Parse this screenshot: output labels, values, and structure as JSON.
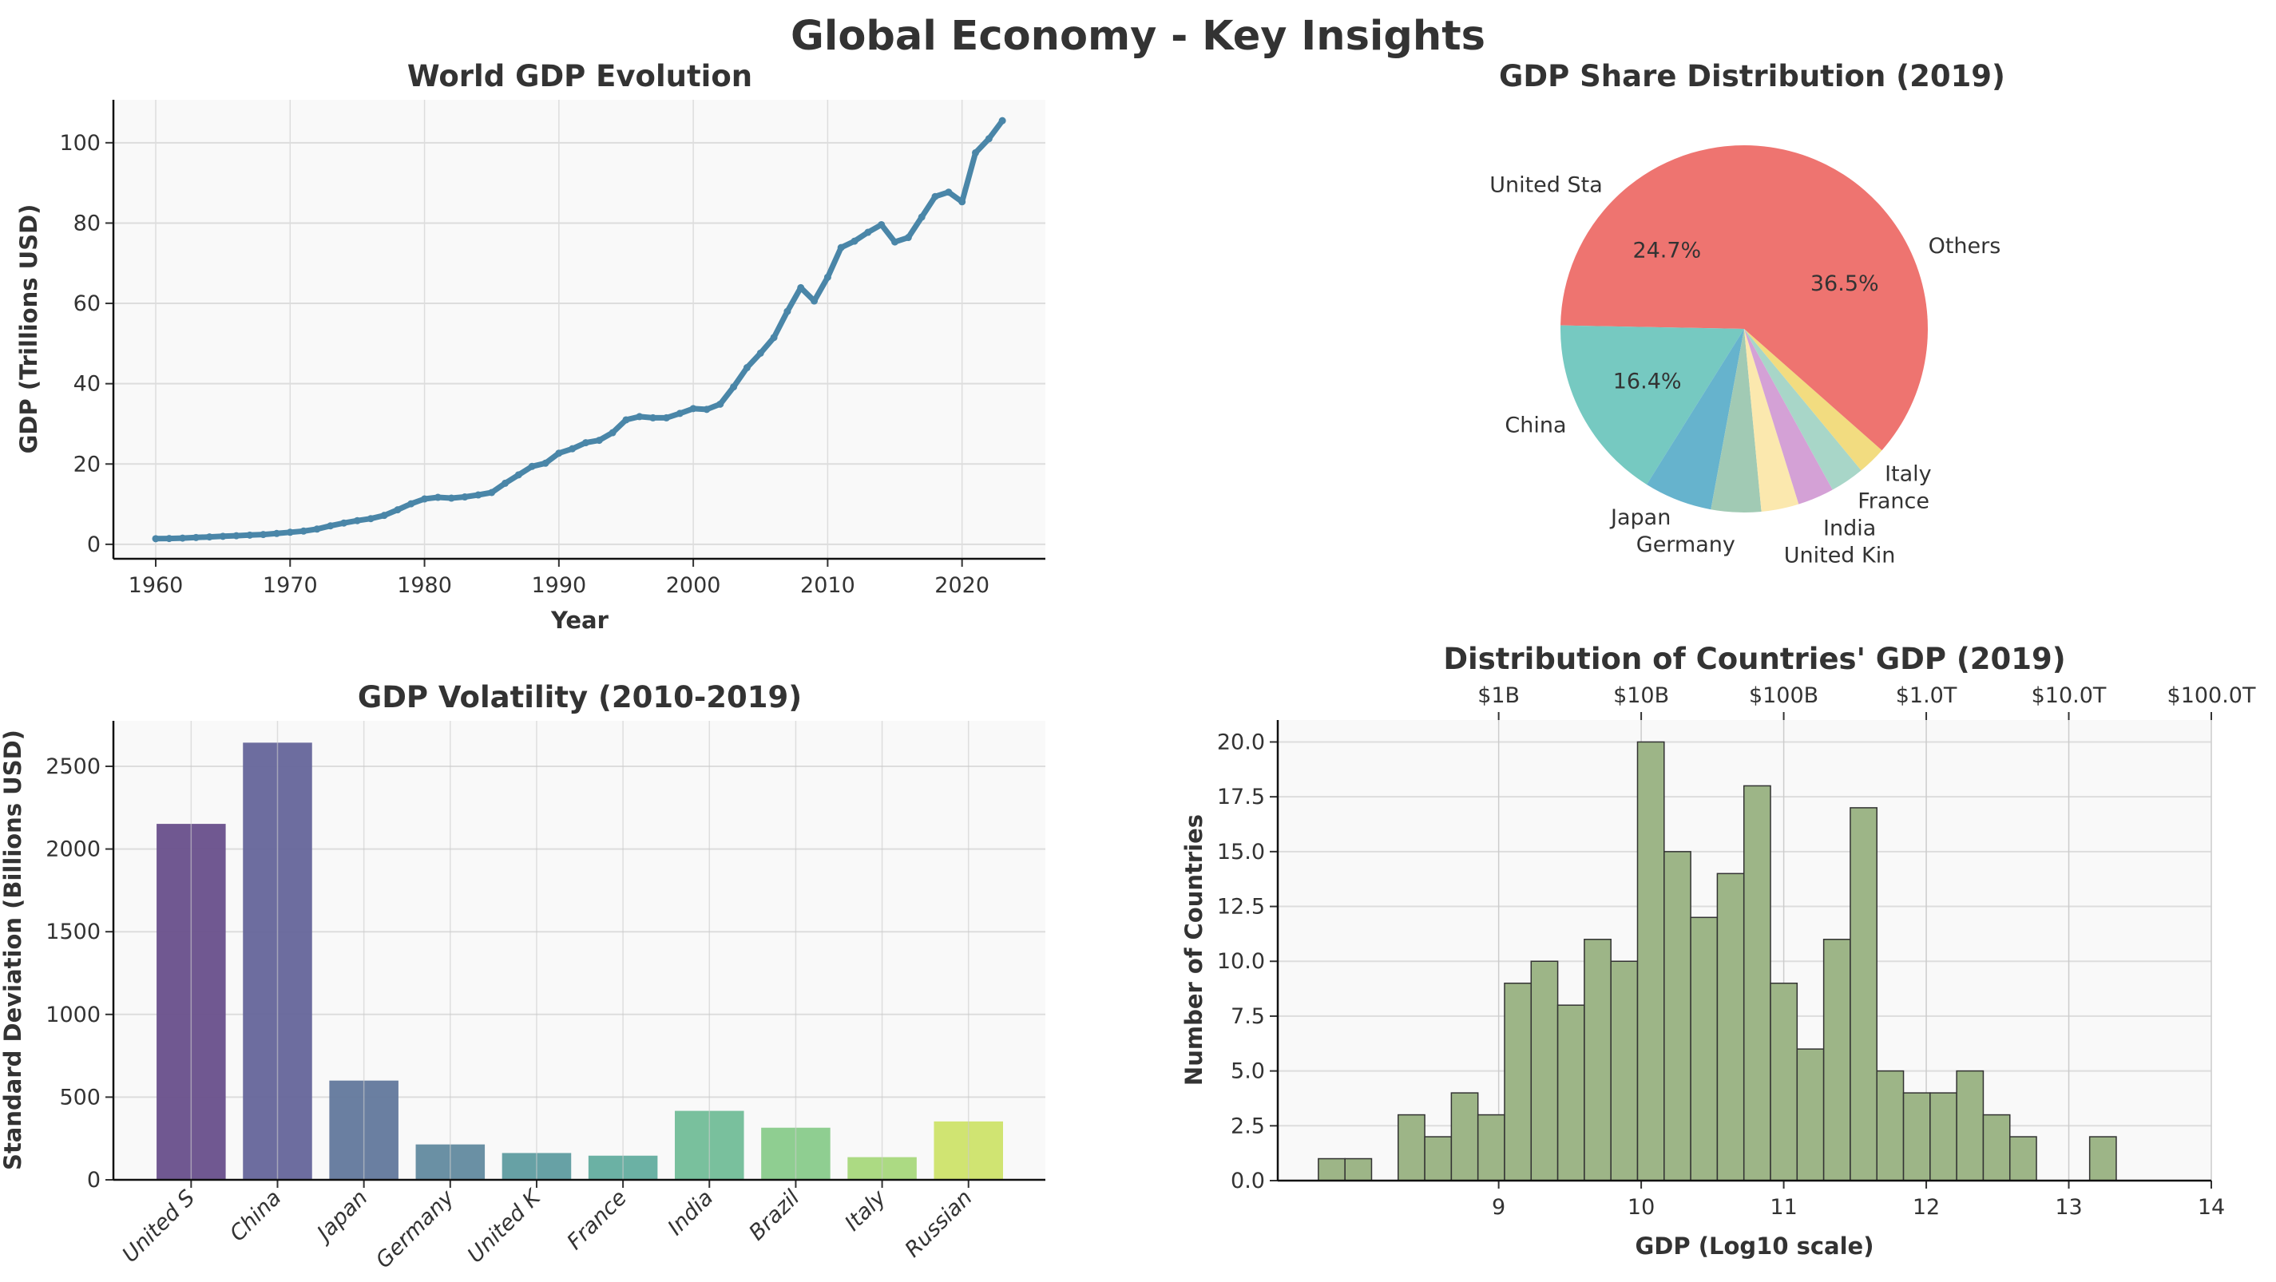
{
  "suptitle": "Global Economy - Key Insights",
  "chart_data": [
    {
      "type": "line",
      "title": "World GDP Evolution",
      "xlabel": "Year",
      "ylabel": "GDP (Trillions USD)",
      "xlim": [
        1956.85,
        2026.2
      ],
      "ylim": [
        -3.6,
        110.7
      ],
      "xticks": [
        1960,
        1970,
        1980,
        1990,
        2000,
        2010,
        2020
      ],
      "yticks": [
        0,
        20,
        40,
        60,
        80,
        100
      ],
      "grid": true,
      "color": "#4a86a8",
      "x": [
        1960,
        1961,
        1962,
        1963,
        1964,
        1965,
        1966,
        1967,
        1968,
        1969,
        1970,
        1971,
        1972,
        1973,
        1974,
        1975,
        1976,
        1977,
        1978,
        1979,
        1980,
        1981,
        1982,
        1983,
        1984,
        1985,
        1986,
        1987,
        1988,
        1989,
        1990,
        1991,
        1992,
        1993,
        1994,
        1995,
        1996,
        1997,
        1998,
        1999,
        2000,
        2001,
        2002,
        2003,
        2004,
        2005,
        2006,
        2007,
        2008,
        2009,
        2010,
        2011,
        2012,
        2013,
        2014,
        2015,
        2016,
        2017,
        2018,
        2019,
        2020,
        2021,
        2022,
        2023
      ],
      "y": [
        1.4,
        1.45,
        1.55,
        1.7,
        1.85,
        2.0,
        2.15,
        2.3,
        2.45,
        2.7,
        3.0,
        3.3,
        3.8,
        4.6,
        5.3,
        5.9,
        6.4,
        7.2,
        8.6,
        10.1,
        11.3,
        11.7,
        11.5,
        11.8,
        12.3,
        12.9,
        15.2,
        17.3,
        19.4,
        20.2,
        22.7,
        23.8,
        25.3,
        25.9,
        27.8,
        31.0,
        31.8,
        31.5,
        31.5,
        32.6,
        33.8,
        33.6,
        34.9,
        39.2,
        44.0,
        47.6,
        51.5,
        58.0,
        63.9,
        60.6,
        66.5,
        73.9,
        75.5,
        77.7,
        79.6,
        75.3,
        76.4,
        81.5,
        86.6,
        87.7,
        85.3,
        97.5,
        101.0,
        105.5
      ]
    },
    {
      "type": "pie",
      "title": "GDP Share Distribution (2019)",
      "start_angle": 90,
      "slices": [
        {
          "label": "United Sta",
          "value": 24.7,
          "pct_label": "24.7%",
          "color": "#ee7470"
        },
        {
          "label": "China",
          "value": 16.4,
          "pct_label": "16.4%",
          "color": "#76c9c1"
        },
        {
          "label": "Japan",
          "value": 6.0,
          "color": "#66b3cd"
        },
        {
          "label": "Germany",
          "value": 4.4,
          "color": "#a1cab4"
        },
        {
          "label": "United Kin",
          "value": 3.3,
          "color": "#fbe8ae"
        },
        {
          "label": "India",
          "value": 3.2,
          "color": "#d4a1d6"
        },
        {
          "label": "France",
          "value": 3.0,
          "color": "#a8d6c8"
        },
        {
          "label": "Italy",
          "value": 2.5,
          "color": "#f2dc80"
        },
        {
          "label": "Others",
          "value": 36.5,
          "pct_label": "36.5%",
          "color": "#ee7470"
        }
      ]
    },
    {
      "type": "bar",
      "title": "GDP Volatility (2010-2019)",
      "xlabel": "",
      "ylabel": "Standard Deviation (Billions USD)",
      "categories": [
        "United S",
        "China",
        "Japan",
        "Germany",
        "United K",
        "France",
        "India",
        "Brazil",
        "Italy",
        "Russian"
      ],
      "values": [
        2152,
        2643,
        600,
        214,
        162,
        146,
        417,
        315,
        137,
        353
      ],
      "colors": [
        "#684f8b",
        "#65659a",
        "#62789c",
        "#628a9f",
        "#5f9ca0",
        "#63ad9f",
        "#72bd98",
        "#89cb8b",
        "#a8d87c",
        "#cee36a"
      ],
      "ylim": [
        0,
        2775
      ],
      "yticks": [
        0,
        500,
        1000,
        1500,
        2000,
        2500
      ],
      "grid": true
    },
    {
      "type": "histogram",
      "title": "Distribution of Countries' GDP (2019)",
      "xlabel": "GDP (Log10 scale)",
      "ylabel": "Number of Countries",
      "bin_start": 7.735,
      "bin_width": 0.1866,
      "counts": [
        1,
        1,
        0,
        3,
        2,
        4,
        3,
        9,
        10,
        8,
        11,
        10,
        20,
        15,
        12,
        14,
        18,
        9,
        6,
        11,
        17,
        5,
        4,
        4,
        5,
        3,
        2,
        0,
        0,
        2
      ],
      "xlim": [
        7.45,
        14
      ],
      "ylim": [
        0,
        21
      ],
      "xticks": [
        9,
        10,
        11,
        12,
        13,
        14
      ],
      "yticks": [
        "0.0",
        "2.5",
        "5.0",
        "7.5",
        "10.0",
        "12.5",
        "15.0",
        "17.5",
        "20.0"
      ],
      "top_axis_ticks": [
        "$1B",
        "$10B",
        "$100B",
        "$1.0T",
        "$10.0T",
        "$100.0T"
      ],
      "color": "#9db587",
      "edgecolor": "#333333",
      "grid": true
    }
  ]
}
